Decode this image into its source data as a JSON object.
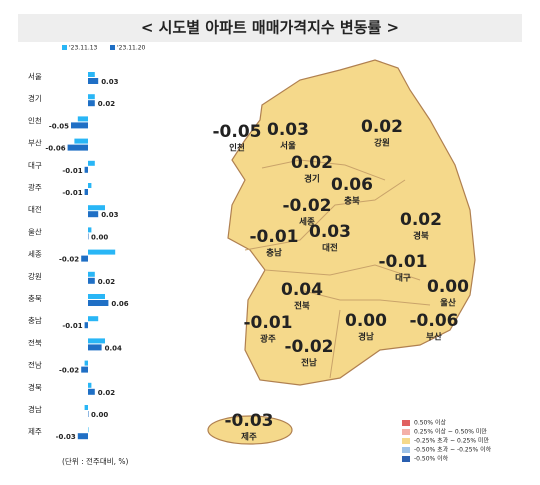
{
  "chart_data": {
    "type": "hbar",
    "title": "< 시도별 아파트 매매가격지수 변동률 >",
    "note": "(단위 : 전주대비, %)",
    "categories": [
      "서울",
      "경기",
      "인천",
      "부산",
      "대구",
      "광주",
      "대전",
      "울산",
      "세종",
      "강원",
      "충북",
      "충남",
      "전북",
      "전남",
      "경북",
      "경남",
      "제주"
    ],
    "series": [
      {
        "name": "'23.11.13",
        "color": "#29b6f6",
        "values": [
          0.02,
          0.02,
          -0.03,
          -0.04,
          0.02,
          0.01,
          0.05,
          0.01,
          0.08,
          0.02,
          0.05,
          0.03,
          0.05,
          -0.01,
          0.01,
          -0.01,
          0.0
        ]
      },
      {
        "name": "'23.11.20",
        "color": "#1f6fc5",
        "values": [
          0.03,
          0.02,
          -0.05,
          -0.06,
          -0.01,
          -0.01,
          0.03,
          0.0,
          -0.02,
          0.02,
          0.06,
          -0.01,
          0.04,
          -0.02,
          0.02,
          0.0,
          -0.03
        ],
        "value_labels": [
          "0.03",
          "0.02",
          "-0.05",
          "-0.06",
          "-0.01",
          "-0.01",
          "0.03",
          "0.00",
          "-0.02",
          "0.02",
          "0.06",
          "-0.01",
          "0.04",
          "-0.02",
          "0.02",
          "0.00",
          "-0.03"
        ]
      }
    ],
    "xlim": [
      -0.1,
      0.1
    ],
    "map_legend": [
      {
        "label": "0.50% 이상",
        "color": "#e06060"
      },
      {
        "label": "0.25% 이상 ~ 0.50% 미만",
        "color": "#f4b0a8"
      },
      {
        "label": "-0.25% 초과 ~ 0.25% 미만",
        "color": "#f5d98b"
      },
      {
        "label": "-0.50% 초과 ~ -0.25% 이하",
        "color": "#9fc3e8"
      },
      {
        "label": "-0.50% 이하",
        "color": "#2a5fb0"
      }
    ]
  }
}
